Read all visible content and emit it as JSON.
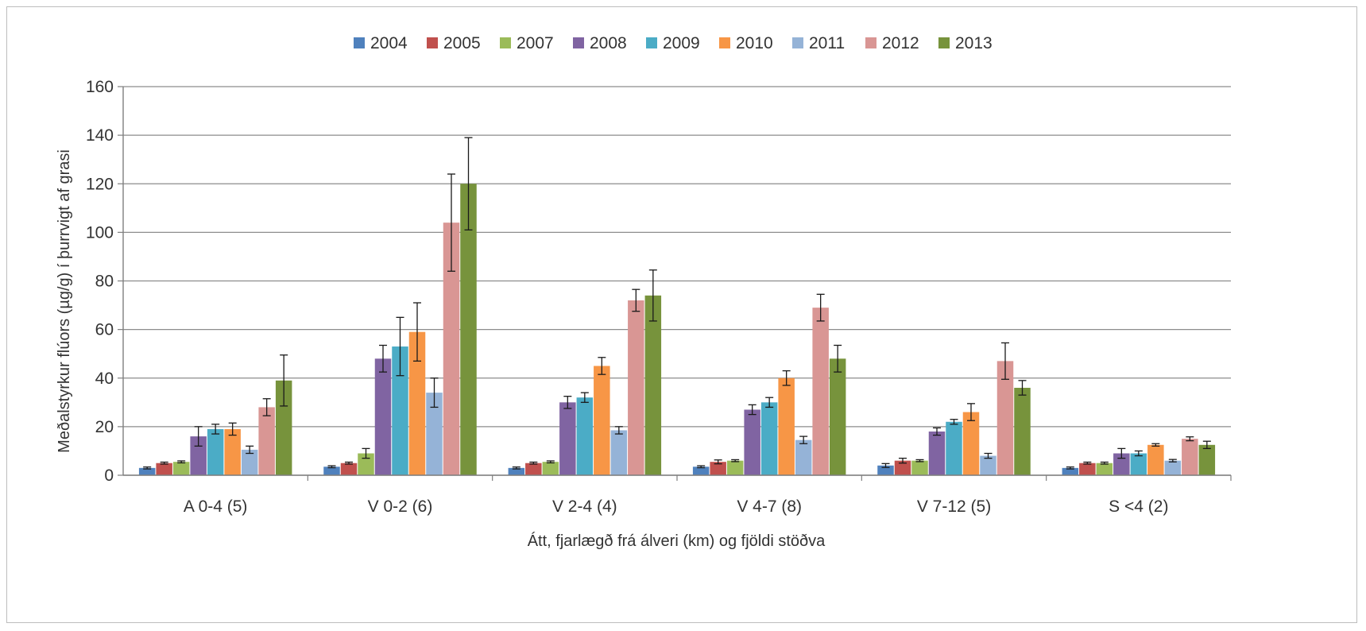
{
  "chart_data": {
    "type": "bar",
    "title": "",
    "xlabel": "Átt, fjarlægð frá álveri (km) og fjöldi stöðva",
    "ylabel": "Meðalstyrkur flúors (µg/g) í þurrvigt af grasi",
    "ylim": [
      0,
      160
    ],
    "yticks": [
      "0",
      "20",
      "40",
      "60",
      "80",
      "100",
      "120",
      "140",
      "160"
    ],
    "grid": true,
    "legend_position": "top",
    "categories": [
      "A 0-4 (5)",
      "V 0-2 (6)",
      "V 2-4 (4)",
      "V 4-7 (8)",
      "V 7-12 (5)",
      "S <4 (2)"
    ],
    "series": [
      {
        "name": "2004",
        "color": "#4f81bd",
        "values": [
          3,
          3.5,
          3,
          3.5,
          4,
          3
        ],
        "errors": [
          0.4,
          0.4,
          0.4,
          0.4,
          0.8,
          0.4
        ]
      },
      {
        "name": "2005",
        "color": "#c0504d",
        "values": [
          5,
          5,
          5,
          5.5,
          6,
          5
        ],
        "errors": [
          0.4,
          0.4,
          0.4,
          0.8,
          1,
          0.4
        ]
      },
      {
        "name": "2007",
        "color": "#9bbb59",
        "values": [
          5.5,
          9,
          5.5,
          6,
          6,
          5
        ],
        "errors": [
          0.4,
          2,
          0.4,
          0.4,
          0.4,
          0.4
        ]
      },
      {
        "name": "2008",
        "color": "#8064a2",
        "values": [
          16,
          48,
          30,
          27,
          18,
          9
        ],
        "errors": [
          4,
          5.5,
          2.5,
          2,
          1.5,
          2
        ]
      },
      {
        "name": "2009",
        "color": "#4bacc6",
        "values": [
          19,
          53,
          32,
          30,
          22,
          9
        ],
        "errors": [
          2,
          12,
          2,
          2,
          1,
          1
        ]
      },
      {
        "name": "2010",
        "color": "#f79646",
        "values": [
          19,
          59,
          45,
          40,
          26,
          12.5
        ],
        "errors": [
          2.5,
          12,
          3.5,
          3,
          3.5,
          0.5
        ]
      },
      {
        "name": "2011",
        "color": "#95b3d7",
        "values": [
          10.5,
          34,
          18.5,
          14.5,
          8,
          6
        ],
        "errors": [
          1.5,
          6,
          1.5,
          1.5,
          1,
          0.5
        ]
      },
      {
        "name": "2012",
        "color": "#d99694",
        "values": [
          28,
          104,
          72,
          69,
          47,
          15
        ],
        "errors": [
          3.5,
          20,
          4.5,
          5.5,
          7.5,
          0.8
        ]
      },
      {
        "name": "2013",
        "color": "#77933c",
        "values": [
          39,
          120,
          74,
          48,
          36,
          12.5
        ],
        "errors": [
          10.5,
          19,
          10.5,
          5.5,
          3,
          1.5
        ]
      }
    ]
  }
}
